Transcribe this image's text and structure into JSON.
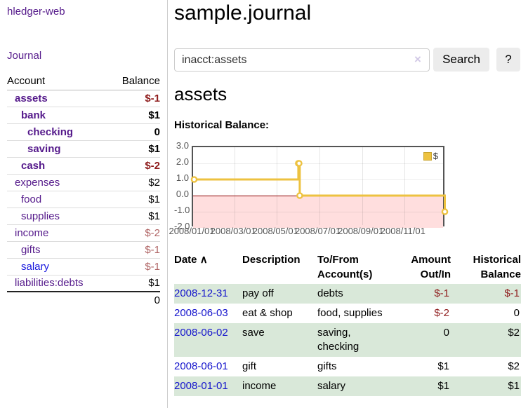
{
  "sidebar": {
    "brand": "hledger-web",
    "journal_label": "Journal",
    "accounts_header": {
      "account": "Account",
      "balance": "Balance"
    },
    "accounts": [
      {
        "name": "assets",
        "depth": 1,
        "bold": true,
        "balance": "$-1",
        "balance_style": "neg-bold",
        "link_style": "purple"
      },
      {
        "name": "bank",
        "depth": 2,
        "bold": true,
        "balance": "$1",
        "balance_style": "pos-bold",
        "link_style": "purple"
      },
      {
        "name": "checking",
        "depth": 3,
        "bold": true,
        "balance": "0",
        "balance_style": "pos-bold",
        "link_style": "purple"
      },
      {
        "name": "saving",
        "depth": 3,
        "bold": true,
        "balance": "$1",
        "balance_style": "pos-bold",
        "link_style": "purple"
      },
      {
        "name": "cash",
        "depth": 2,
        "bold": true,
        "balance": "$-2",
        "balance_style": "neg-bold",
        "link_style": "purple"
      },
      {
        "name": "expenses",
        "depth": 1,
        "bold": false,
        "balance": "$2",
        "balance_style": "posc",
        "link_style": "purple"
      },
      {
        "name": "food",
        "depth": 2,
        "bold": false,
        "balance": "$1",
        "balance_style": "posc",
        "link_style": "purple"
      },
      {
        "name": "supplies",
        "depth": 2,
        "bold": false,
        "balance": "$1",
        "balance_style": "posc",
        "link_style": "purple"
      },
      {
        "name": "income",
        "depth": 1,
        "bold": false,
        "balance": "$-2",
        "balance_style": "negc",
        "link_style": "purple"
      },
      {
        "name": "gifts",
        "depth": 2,
        "bold": false,
        "balance": "$-1",
        "balance_style": "negc",
        "link_style": "purple"
      },
      {
        "name": "salary",
        "depth": 2,
        "bold": false,
        "balance": "$-1",
        "balance_style": "negc",
        "link_style": "blue"
      },
      {
        "name": "liabilities:debts",
        "depth": 1,
        "bold": false,
        "balance": "$1",
        "balance_style": "posc",
        "link_style": "purple"
      }
    ],
    "total": "0"
  },
  "main": {
    "title": "sample.journal",
    "search": {
      "value": "inacct:assets",
      "clear_icon": "×",
      "button_label": "Search",
      "help_label": "?"
    },
    "account_heading": "assets",
    "chart_label": "Historical Balance:"
  },
  "chart_data": {
    "type": "line",
    "step": true,
    "title": "Historical Balance",
    "legend_position": "top-right",
    "legend": [
      {
        "label": "$",
        "color": "#edc240"
      }
    ],
    "x": [
      "2008-01-01",
      "2008-06-01",
      "2008-06-02",
      "2008-06-03",
      "2008-12-31"
    ],
    "values": [
      1,
      2,
      2,
      0,
      -1
    ],
    "x_range": [
      "2008-01-01",
      "2008-12-31"
    ],
    "ylim": [
      -2,
      3
    ],
    "y_ticks": [
      "3.0",
      "2.0",
      "1.0",
      "0.0",
      "-1.0",
      "-2.0"
    ],
    "x_ticks": [
      "2008/01/01",
      "2008/03/01",
      "2008/05/01",
      "2008/07/01",
      "2008/09/01",
      "2008/11/01"
    ],
    "grid": true,
    "line_color": "#edc240",
    "marker_fill": "#ffffff",
    "zero_line_color": "#8b0000",
    "negative_region_color": "#ffdede"
  },
  "register": {
    "headers": {
      "date": "Date",
      "date_sort_icon": "∧",
      "description": "Description",
      "tofrom_line1": "To/From",
      "tofrom_line2": "Account(s)",
      "amount_line1": "Amount",
      "amount_line2": "Out/In",
      "hist_line1": "Historical",
      "hist_line2": "Balance"
    },
    "rows": [
      {
        "date": "2008-12-31",
        "description": "pay off",
        "accounts": "debts",
        "amount": "$-1",
        "amount_neg": true,
        "balance": "$-1",
        "balance_neg": true,
        "shaded": true
      },
      {
        "date": "2008-06-03",
        "description": "eat & shop",
        "accounts": "food, supplies",
        "amount": "$-2",
        "amount_neg": true,
        "balance": "0",
        "balance_neg": false,
        "shaded": false
      },
      {
        "date": "2008-06-02",
        "description": "save",
        "accounts": "saving, checking",
        "amount": "0",
        "amount_neg": false,
        "balance": "$2",
        "balance_neg": false,
        "shaded": true
      },
      {
        "date": "2008-06-01",
        "description": "gift",
        "accounts": "gifts",
        "amount": "$1",
        "amount_neg": false,
        "balance": "$2",
        "balance_neg": false,
        "shaded": false
      },
      {
        "date": "2008-01-01",
        "description": "income",
        "accounts": "salary",
        "amount": "$1",
        "amount_neg": false,
        "balance": "$1",
        "balance_neg": false,
        "shaded": true
      }
    ]
  }
}
